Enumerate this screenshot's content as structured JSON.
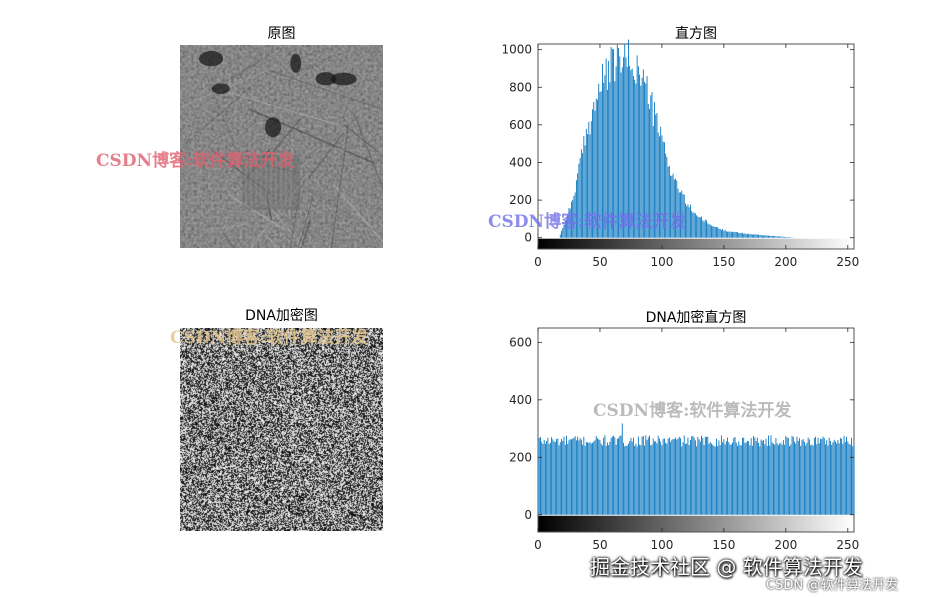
{
  "panels": {
    "original": {
      "title": "原图"
    },
    "encrypted": {
      "title": "DNA加密图"
    }
  },
  "chart_data": [
    {
      "type": "bar",
      "title": "直方图",
      "xlabel": "",
      "ylabel": "",
      "xlim": [
        0,
        255
      ],
      "ylim": [
        -60,
        1030
      ],
      "xticks": [
        0,
        50,
        100,
        150,
        200,
        250
      ],
      "yticks": [
        0,
        200,
        400,
        600,
        800,
        1000
      ],
      "bar_color": "#0072BD",
      "colorbar": "grayscale",
      "grid": false,
      "distribution": {
        "shape": "skewed-right",
        "peak_x": 69,
        "peak_y": 960,
        "nonzero_start": 17,
        "nonzero_end": 208,
        "anchors": [
          [
            17,
            0
          ],
          [
            22,
            90
          ],
          [
            28,
            200
          ],
          [
            32,
            330
          ],
          [
            38,
            520
          ],
          [
            45,
            700
          ],
          [
            52,
            830
          ],
          [
            58,
            900
          ],
          [
            64,
            940
          ],
          [
            69,
            960
          ],
          [
            75,
            940
          ],
          [
            82,
            880
          ],
          [
            88,
            790
          ],
          [
            94,
            650
          ],
          [
            100,
            520
          ],
          [
            106,
            380
          ],
          [
            113,
            270
          ],
          [
            120,
            180
          ],
          [
            130,
            110
          ],
          [
            140,
            65
          ],
          [
            150,
            40
          ],
          [
            160,
            28
          ],
          [
            170,
            20
          ],
          [
            180,
            14
          ],
          [
            190,
            9
          ],
          [
            200,
            4
          ],
          [
            208,
            0
          ]
        ]
      }
    },
    {
      "type": "bar",
      "title": "DNA加密直方图",
      "xlabel": "",
      "ylabel": "",
      "xlim": [
        0,
        255
      ],
      "ylim": [
        -60,
        650
      ],
      "xticks": [
        0,
        50,
        100,
        150,
        200,
        250
      ],
      "yticks": [
        0,
        200,
        400,
        600
      ],
      "bar_color": "#0072BD",
      "colorbar": "grayscale",
      "grid": false,
      "distribution": {
        "shape": "uniform",
        "mean": 257,
        "spread": 22,
        "max": 318,
        "max_at": 68
      }
    }
  ],
  "watermarks": [
    {
      "text": "CSDN博客:软件算法开发",
      "color": "#e06070"
    },
    {
      "text": "CSDN博客:软件算法开发",
      "color": "#7070e8"
    },
    {
      "text": "CSDN博客:软件算法开发",
      "color": "#e6c890"
    },
    {
      "text": "CSDN博客:软件算法开发",
      "color": "#b0b0b0"
    }
  ],
  "footer": {
    "main": "掘金技术社区 @ 软件算法开发",
    "sub": "CSDN @软件算法开发"
  }
}
